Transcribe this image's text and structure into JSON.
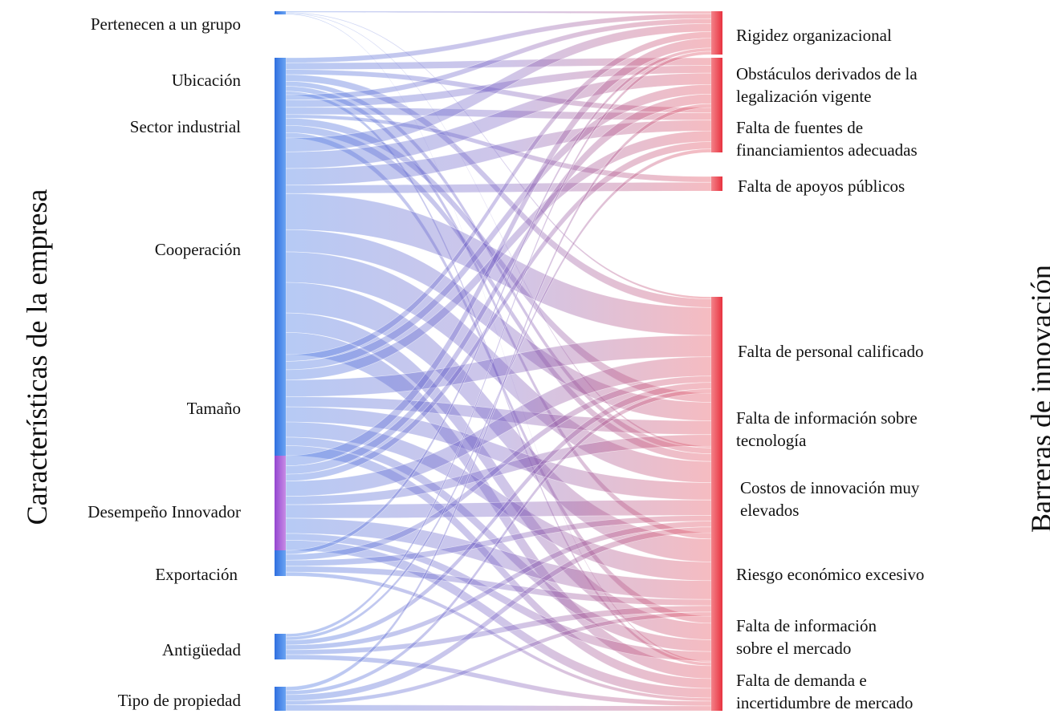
{
  "axis_titles": {
    "left": "Características de la empresa",
    "right": "Barreras de innovación"
  },
  "colors": {
    "left_nodes": "#3f7fe6",
    "left_node_purple": "#a05bd6",
    "right_nodes": "#ee4f58",
    "flow_mid": "#7a5fbf"
  },
  "left_nodes": [
    {
      "id": "grupo",
      "label": "Pertenecen a un grupo"
    },
    {
      "id": "ubicacion",
      "label": "Ubicación"
    },
    {
      "id": "sector",
      "label": "Sector industrial"
    },
    {
      "id": "cooperacion",
      "label": "Cooperación"
    },
    {
      "id": "tamano",
      "label": "Tamaño"
    },
    {
      "id": "desempeno",
      "label": "Desempeño Innovador"
    },
    {
      "id": "exportacion",
      "label": "Exportación"
    },
    {
      "id": "antiguedad",
      "label": "Antigüedad"
    },
    {
      "id": "propiedad",
      "label": "Tipo de propiedad"
    }
  ],
  "right_nodes": [
    {
      "id": "rigidez",
      "label": "Rigidez organizacional"
    },
    {
      "id": "obstaculos",
      "label": "Obstáculos derivados de la legalización vigente",
      "lines": [
        "Obstáculos derivados de la",
        "legalización vigente"
      ]
    },
    {
      "id": "financiamiento",
      "label": "Falta de fuentes de financiamientos adecuadas",
      "lines": [
        "Falta de fuentes de",
        "financiamientos adecuadas"
      ]
    },
    {
      "id": "apoyos",
      "label": "Falta de apoyos públicos"
    },
    {
      "id": "personal",
      "label": "Falta de personal calificado"
    },
    {
      "id": "info_tec",
      "label": "Falta de información sobre tecnología",
      "lines": [
        "Falta de información sobre",
        "tecnología"
      ]
    },
    {
      "id": "costos",
      "label": "Costos de innovación muy elevados",
      "lines": [
        "Costos de innovación muy",
        "elevados"
      ]
    },
    {
      "id": "riesgo",
      "label": "Riesgo económico excesivo"
    },
    {
      "id": "info_mercado",
      "label": "Falta de información sobre el mercado",
      "lines": [
        "Falta de información",
        "sobre el mercado"
      ]
    },
    {
      "id": "demanda",
      "label": "Falta de demanda e incertidumbre de mercado",
      "lines": [
        "Falta de demanda e",
        "incertidumbre de mercado"
      ]
    }
  ]
}
